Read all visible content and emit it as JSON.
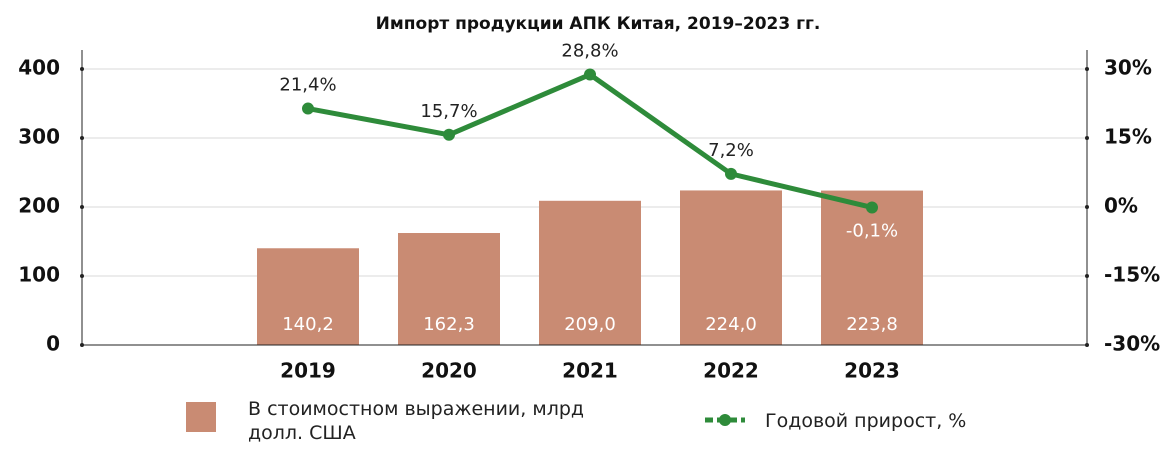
{
  "chart_data": {
    "type": "bar_line",
    "title": "Импорт продукции АПК Китая, 2019–2023 гг.",
    "categories": [
      "2019",
      "2020",
      "2021",
      "2022",
      "2023"
    ],
    "series": [
      {
        "name": "В стоимостном выражении, млрд долл. США",
        "type": "bar",
        "color": "#c98b73",
        "values": [
          140.2,
          162.3,
          209.0,
          224.0,
          223.8
        ],
        "value_labels": [
          "140,2",
          "162,3",
          "209,0",
          "224,0",
          "223,8"
        ]
      },
      {
        "name": "Годовой прирост, %",
        "type": "line",
        "axis": "y2",
        "color": "#2e8b3a",
        "values": [
          21.4,
          15.7,
          28.8,
          7.2,
          -0.1
        ],
        "value_labels": [
          "21,4%",
          "15,7%",
          "28,8%",
          "7,2%",
          "-0,1%"
        ]
      }
    ],
    "ylim": [
      0,
      400
    ],
    "yticks": [
      0,
      100,
      200,
      300,
      400
    ],
    "y2lim": [
      -30,
      30
    ],
    "y2ticks": [
      {
        "value": -30,
        "label": "-30%"
      },
      {
        "value": -15,
        "label": "-15%"
      },
      {
        "value": 0,
        "label": "0%"
      },
      {
        "value": 15,
        "label": "15%"
      },
      {
        "value": 30,
        "label": "30%"
      }
    ],
    "grid": true
  }
}
